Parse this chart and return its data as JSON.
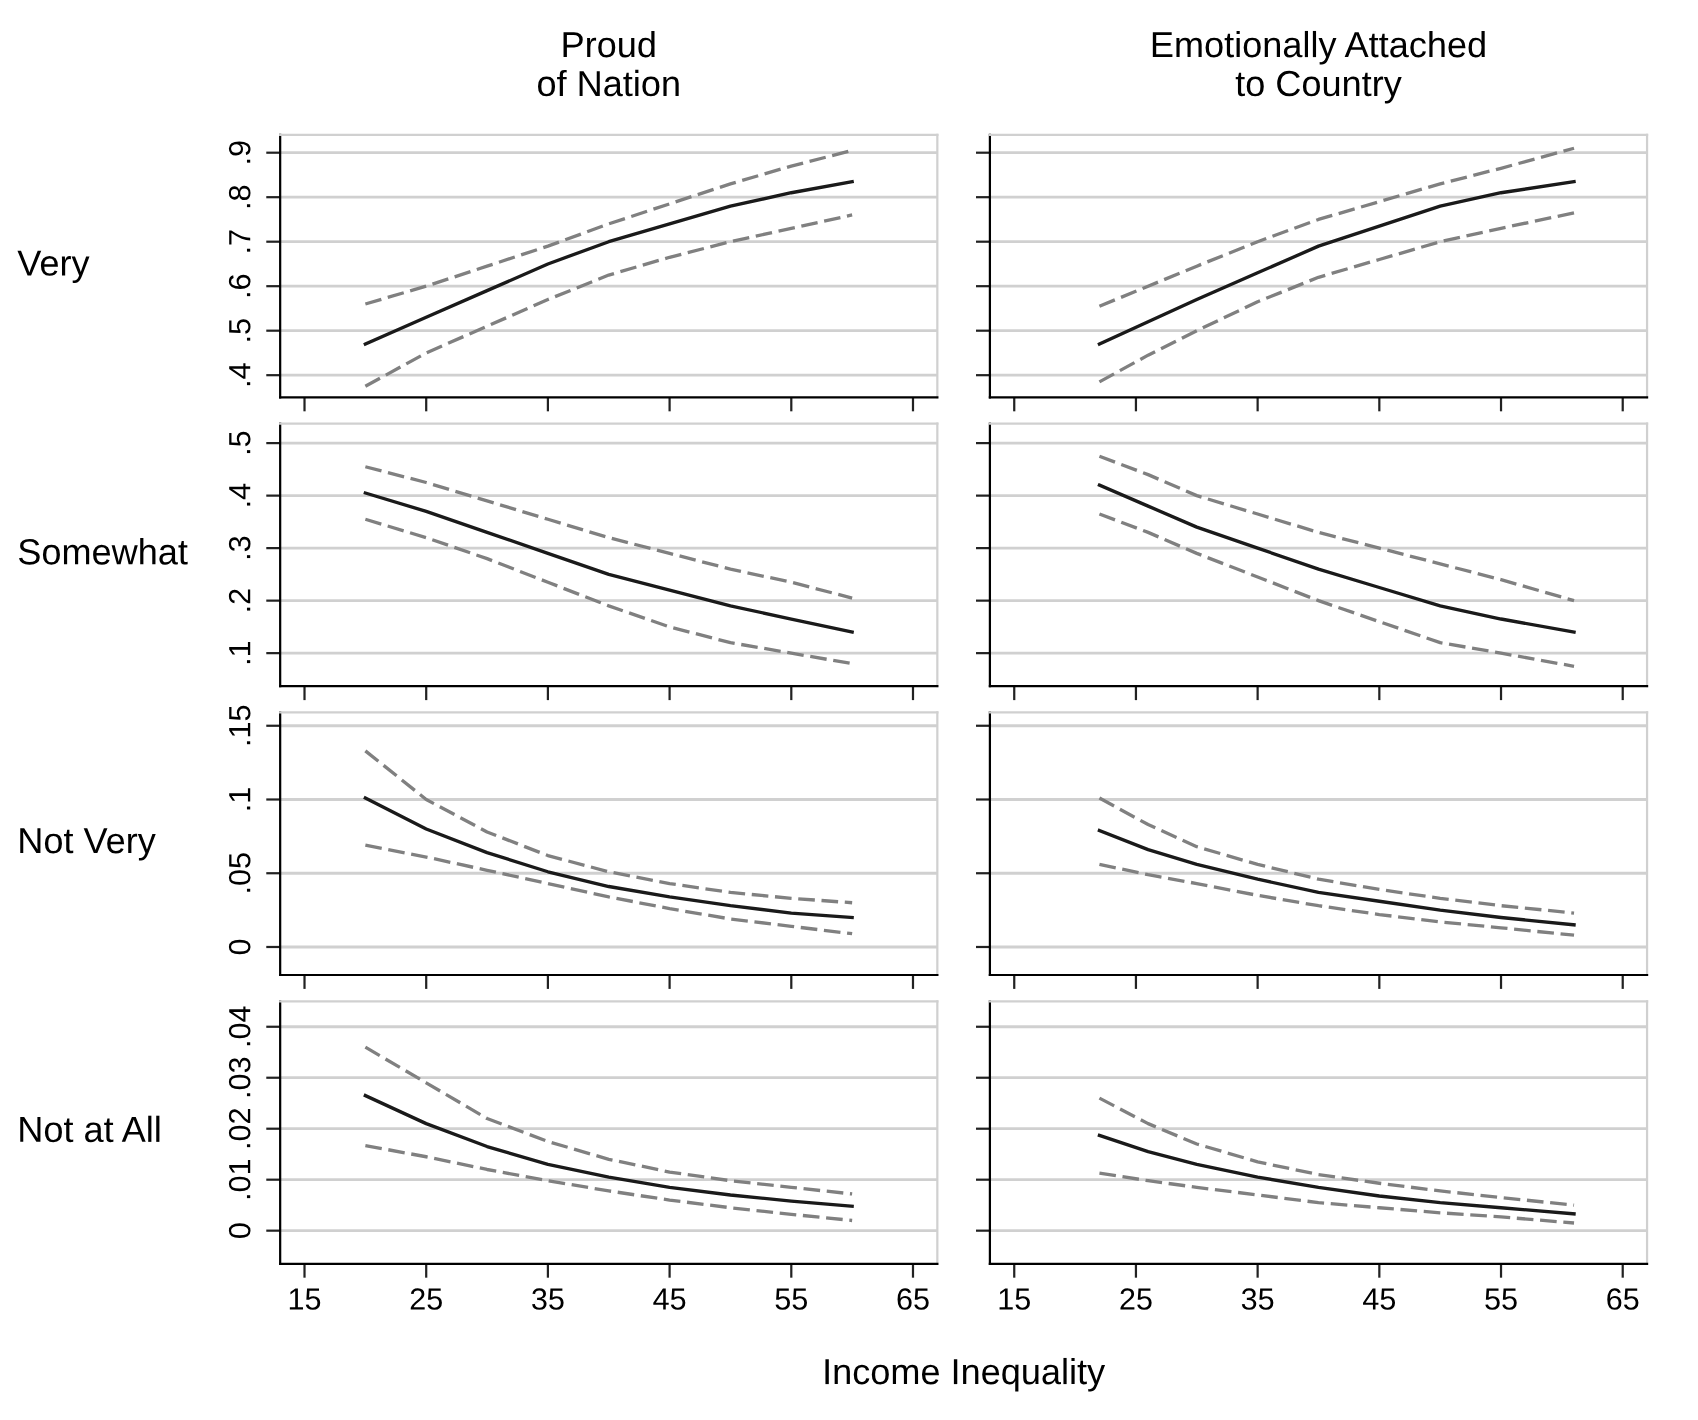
{
  "chart_data": [
    {
      "type": "line",
      "title": "Proud\nof Nation",
      "ylabel": "Very",
      "x": [
        20,
        25,
        30,
        35,
        40,
        45,
        50,
        55,
        60
      ],
      "xlim": [
        13,
        67
      ],
      "xticks": [
        15,
        25,
        35,
        45,
        55,
        65
      ],
      "ylim": [
        0.35,
        0.94
      ],
      "yticks": [
        {
          "value": 0.4,
          "label": ".4"
        },
        {
          "value": 0.5,
          "label": ".5"
        },
        {
          "value": 0.6,
          "label": ".6"
        },
        {
          "value": 0.7,
          "label": ".7"
        },
        {
          "value": 0.8,
          "label": ".8"
        },
        {
          "value": 0.9,
          "label": ".9"
        }
      ],
      "grid": "y",
      "tick_labels": "y",
      "series": [
        {
          "color": "#1a1a1a",
          "line_style": "solid",
          "values": [
            0.47,
            0.53,
            0.59,
            0.65,
            0.7,
            0.74,
            0.78,
            0.81,
            0.835
          ]
        },
        {
          "color": "#808080",
          "line_style": "dashed",
          "values": [
            0.56,
            0.6,
            0.645,
            0.69,
            0.74,
            0.785,
            0.83,
            0.87,
            0.905
          ]
        },
        {
          "color": "#808080",
          "line_style": "dashed",
          "values": [
            0.375,
            0.45,
            0.51,
            0.57,
            0.625,
            0.665,
            0.7,
            0.73,
            0.76
          ]
        }
      ]
    },
    {
      "type": "line",
      "title": "Emotionally Attached\nto Country",
      "x": [
        22,
        26,
        30,
        35,
        40,
        45,
        50,
        55,
        61
      ],
      "xlim": [
        13,
        67
      ],
      "xticks": [
        15,
        25,
        35,
        45,
        55,
        65
      ],
      "ylim": [
        0.35,
        0.94
      ],
      "yticks": [
        {
          "value": 0.4,
          "label": null
        },
        {
          "value": 0.5,
          "label": null
        },
        {
          "value": 0.6,
          "label": null
        },
        {
          "value": 0.7,
          "label": null
        },
        {
          "value": 0.8,
          "label": null
        },
        {
          "value": 0.9,
          "label": null
        }
      ],
      "grid": "y",
      "tick_labels": false,
      "series": [
        {
          "color": "#1a1a1a",
          "line_style": "solid",
          "values": [
            0.47,
            0.52,
            0.57,
            0.63,
            0.69,
            0.735,
            0.78,
            0.81,
            0.835
          ]
        },
        {
          "color": "#808080",
          "line_style": "dashed",
          "values": [
            0.555,
            0.6,
            0.645,
            0.7,
            0.75,
            0.79,
            0.83,
            0.865,
            0.91
          ]
        },
        {
          "color": "#808080",
          "line_style": "dashed",
          "values": [
            0.385,
            0.445,
            0.5,
            0.565,
            0.62,
            0.66,
            0.7,
            0.73,
            0.765
          ]
        }
      ]
    },
    {
      "type": "line",
      "ylabel": "Somewhat",
      "x": [
        20,
        25,
        30,
        35,
        40,
        45,
        50,
        55,
        60
      ],
      "xlim": [
        13,
        67
      ],
      "xticks": [
        15,
        25,
        35,
        45,
        55,
        65
      ],
      "ylim": [
        0.037,
        0.537
      ],
      "yticks": [
        {
          "value": 0.1,
          "label": ".1"
        },
        {
          "value": 0.2,
          "label": ".2"
        },
        {
          "value": 0.3,
          "label": ".3"
        },
        {
          "value": 0.4,
          "label": ".4"
        },
        {
          "value": 0.5,
          "label": ".5"
        }
      ],
      "grid": "y",
      "tick_labels": "y",
      "series": [
        {
          "color": "#1a1a1a",
          "line_style": "solid",
          "values": [
            0.405,
            0.37,
            0.33,
            0.29,
            0.25,
            0.22,
            0.19,
            0.165,
            0.14
          ]
        },
        {
          "color": "#808080",
          "line_style": "dashed",
          "values": [
            0.455,
            0.425,
            0.39,
            0.355,
            0.32,
            0.29,
            0.26,
            0.235,
            0.205
          ]
        },
        {
          "color": "#808080",
          "line_style": "dashed",
          "values": [
            0.355,
            0.32,
            0.28,
            0.235,
            0.19,
            0.15,
            0.12,
            0.1,
            0.08
          ]
        }
      ]
    },
    {
      "type": "line",
      "x": [
        22,
        26,
        30,
        35,
        40,
        45,
        50,
        55,
        61
      ],
      "xlim": [
        13,
        67
      ],
      "xticks": [
        15,
        25,
        35,
        45,
        55,
        65
      ],
      "ylim": [
        0.037,
        0.537
      ],
      "yticks": [
        {
          "value": 0.1,
          "label": null
        },
        {
          "value": 0.2,
          "label": null
        },
        {
          "value": 0.3,
          "label": null
        },
        {
          "value": 0.4,
          "label": null
        },
        {
          "value": 0.5,
          "label": null
        }
      ],
      "grid": "y",
      "tick_labels": false,
      "series": [
        {
          "color": "#1a1a1a",
          "line_style": "solid",
          "values": [
            0.42,
            0.38,
            0.34,
            0.3,
            0.26,
            0.225,
            0.19,
            0.165,
            0.14
          ]
        },
        {
          "color": "#808080",
          "line_style": "dashed",
          "values": [
            0.475,
            0.44,
            0.4,
            0.365,
            0.33,
            0.3,
            0.27,
            0.24,
            0.2
          ]
        },
        {
          "color": "#808080",
          "line_style": "dashed",
          "values": [
            0.365,
            0.33,
            0.29,
            0.245,
            0.2,
            0.16,
            0.12,
            0.1,
            0.075
          ]
        }
      ]
    },
    {
      "type": "line",
      "ylabel": "Not Very",
      "x": [
        20,
        25,
        30,
        35,
        40,
        45,
        50,
        55,
        60
      ],
      "xlim": [
        13,
        67
      ],
      "xticks": [
        15,
        25,
        35,
        45,
        55,
        65
      ],
      "ylim": [
        -0.019,
        0.159
      ],
      "yticks": [
        0,
        {
          "value": 0.05,
          "label": ".05"
        },
        {
          "value": 0.1,
          "label": ".1"
        },
        {
          "value": 0.15,
          "label": ".15"
        }
      ],
      "grid": "y",
      "tick_labels": "y",
      "series": [
        {
          "color": "#1a1a1a",
          "line_style": "solid",
          "values": [
            0.101,
            0.08,
            0.064,
            0.051,
            0.041,
            0.034,
            0.028,
            0.023,
            0.02
          ]
        },
        {
          "color": "#808080",
          "line_style": "dashed",
          "values": [
            0.133,
            0.1,
            0.078,
            0.062,
            0.051,
            0.043,
            0.037,
            0.033,
            0.03
          ]
        },
        {
          "color": "#808080",
          "line_style": "dashed",
          "values": [
            0.069,
            0.061,
            0.052,
            0.043,
            0.034,
            0.026,
            0.019,
            0.014,
            0.009
          ]
        }
      ]
    },
    {
      "type": "line",
      "x": [
        22,
        26,
        30,
        35,
        40,
        45,
        50,
        55,
        61
      ],
      "xlim": [
        13,
        67
      ],
      "xticks": [
        15,
        25,
        35,
        45,
        55,
        65
      ],
      "ylim": [
        -0.019,
        0.159
      ],
      "yticks": [
        {
          "value": 0,
          "label": null
        },
        {
          "value": 0.05,
          "label": null
        },
        {
          "value": 0.1,
          "label": null
        },
        {
          "value": 0.15,
          "label": null
        }
      ],
      "grid": "y",
      "tick_labels": false,
      "series": [
        {
          "color": "#1a1a1a",
          "line_style": "solid",
          "values": [
            0.079,
            0.066,
            0.056,
            0.046,
            0.037,
            0.031,
            0.025,
            0.02,
            0.015
          ]
        },
        {
          "color": "#808080",
          "line_style": "dashed",
          "values": [
            0.101,
            0.083,
            0.068,
            0.056,
            0.046,
            0.039,
            0.033,
            0.028,
            0.023
          ]
        },
        {
          "color": "#808080",
          "line_style": "dashed",
          "values": [
            0.056,
            0.049,
            0.043,
            0.035,
            0.028,
            0.022,
            0.017,
            0.013,
            0.008
          ]
        }
      ]
    },
    {
      "type": "line",
      "ylabel": "Not at All",
      "xlabel": "Income Inequality",
      "x": [
        20,
        25,
        30,
        35,
        40,
        45,
        50,
        55,
        60
      ],
      "xlim": [
        13,
        67
      ],
      "xticks": [
        15,
        25,
        35,
        45,
        55,
        65
      ],
      "ylim": [
        -0.0065,
        0.045
      ],
      "yticks": [
        0,
        {
          "value": 0.01,
          "label": ".01"
        },
        {
          "value": 0.02,
          "label": ".02"
        },
        {
          "value": 0.03,
          "label": ".03"
        },
        {
          "value": 0.04,
          "label": ".04"
        }
      ],
      "grid": "y",
      "series": [
        {
          "color": "#1a1a1a",
          "line_style": "solid",
          "values": [
            0.0265,
            0.021,
            0.0165,
            0.013,
            0.0105,
            0.0085,
            0.007,
            0.0058,
            0.0048
          ]
        },
        {
          "color": "#808080",
          "line_style": "dashed",
          "values": [
            0.036,
            0.029,
            0.022,
            0.0175,
            0.014,
            0.0115,
            0.0098,
            0.0085,
            0.0072
          ]
        },
        {
          "color": "#808080",
          "line_style": "dashed",
          "values": [
            0.0167,
            0.0145,
            0.012,
            0.0098,
            0.0078,
            0.006,
            0.0045,
            0.0032,
            0.002
          ]
        }
      ]
    },
    {
      "type": "line",
      "x": [
        22,
        26,
        30,
        35,
        40,
        45,
        50,
        55,
        61
      ],
      "xlim": [
        13,
        67
      ],
      "xticks": [
        15,
        25,
        35,
        45,
        55,
        65
      ],
      "ylim": [
        -0.0065,
        0.045
      ],
      "yticks": [
        {
          "value": 0,
          "label": null
        },
        {
          "value": 0.01,
          "label": null
        },
        {
          "value": 0.02,
          "label": null
        },
        {
          "value": 0.03,
          "label": null
        },
        {
          "value": 0.04,
          "label": null
        }
      ],
      "grid": "y",
      "tick_labels": "x",
      "series": [
        {
          "color": "#1a1a1a",
          "line_style": "solid",
          "values": [
            0.0187,
            0.0155,
            0.013,
            0.0105,
            0.0085,
            0.0068,
            0.0055,
            0.0045,
            0.0033
          ]
        },
        {
          "color": "#808080",
          "line_style": "dashed",
          "values": [
            0.026,
            0.021,
            0.017,
            0.0135,
            0.011,
            0.0093,
            0.0078,
            0.0065,
            0.005
          ]
        },
        {
          "color": "#808080",
          "line_style": "dashed",
          "values": [
            0.0113,
            0.0098,
            0.0085,
            0.007,
            0.0055,
            0.0045,
            0.0035,
            0.0027,
            0.0015
          ]
        }
      ]
    }
  ]
}
